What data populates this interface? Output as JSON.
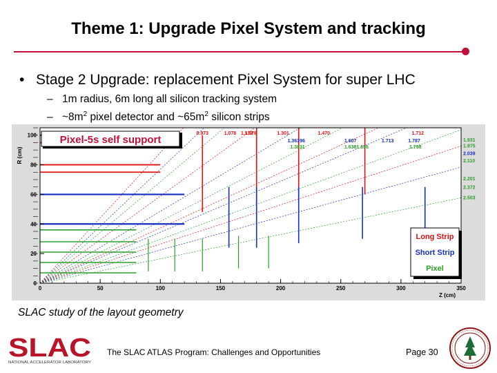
{
  "slide": {
    "title": "Theme 1: Upgrade Pixel System and tracking",
    "bullet_main": "Stage 2 Upgrade: replacement Pixel System for super LHC",
    "bullet_sub1": "1m radius, 6m long all silicon tracking system",
    "bullet_sub2_a": "~8m",
    "bullet_sub2_sup": "2",
    "bullet_sub2_b": " pixel detector and ~65m",
    "bullet_sub2_sup2": "2",
    "bullet_sub2_c": " silicon strips",
    "caption": "SLAC study of the layout geometry",
    "footer": "The SLAC ATLAS Program: Challenges and Opportunities",
    "page": "Page 30"
  },
  "logo": {
    "text": "SLAC",
    "subtext": "NATIONAL ACCELERATOR LABORATORY",
    "color": "#b8142a"
  },
  "colors": {
    "accent": "#c0103a",
    "long_strip": "#e01010",
    "short_strip": "#1530c0",
    "pixel": "#2aa02a",
    "plot_bg": "#dcdcdc"
  },
  "chart_data": {
    "type": "scatter",
    "plot_title": "Pixel-5s self support",
    "xlabel": "Z (cm)",
    "ylabel": "R (cm)",
    "xlim": [
      0,
      350
    ],
    "ylim": [
      0,
      105
    ],
    "xticks": [
      0,
      50,
      100,
      150,
      200,
      250,
      300,
      350
    ],
    "yticks": [
      0,
      20,
      40,
      60,
      80,
      100
    ],
    "legend": [
      "Long Strip",
      "Short Strip",
      "Pixel"
    ],
    "legend_position": "bottom-right",
    "top_eta_labels": [
      {
        "z": 135,
        "text": "0.973"
      },
      {
        "z": 158,
        "text": "1.078"
      },
      {
        "z": 172,
        "text": "1.172"
      },
      {
        "z": 175,
        "text": "1.078"
      },
      {
        "z": 202,
        "text": "1.301"
      },
      {
        "z": 236,
        "text": "1.470"
      },
      {
        "z": 314,
        "text": "1.712"
      }
    ],
    "top_eta_labels_row2": [
      {
        "z": 213,
        "text": "1.36396"
      },
      {
        "z": 258,
        "text": "1.607"
      },
      {
        "z": 289,
        "text": "1.713"
      },
      {
        "z": 311,
        "text": "1.787"
      }
    ],
    "top_eta_labels_row3": [
      {
        "z": 214,
        "text": "1.3831"
      },
      {
        "z": 263,
        "text": "1.6381.636"
      },
      {
        "z": 312,
        "text": "1.798"
      }
    ],
    "right_eta_labels": [
      {
        "r": 97,
        "text": "1.931"
      },
      {
        "r": 93,
        "text": "1.975"
      },
      {
        "r": 88,
        "text": "2.039"
      },
      {
        "r": 83,
        "text": "2.110"
      },
      {
        "r": 71,
        "text": "2.201"
      },
      {
        "r": 65,
        "text": "2.372"
      },
      {
        "r": 58,
        "text": "2.503"
      }
    ],
    "long_strip_barrel": [
      {
        "r": 100,
        "zmax": 100
      },
      {
        "r": 95,
        "zmax": 100
      },
      {
        "r": 80,
        "zmax": 100
      },
      {
        "r": 75,
        "zmax": 100
      }
    ],
    "long_strip_disks": [
      {
        "z": 135,
        "rmin": 48,
        "rmax": 100
      },
      {
        "z": 180,
        "rmin": 52,
        "rmax": 105
      },
      {
        "z": 215,
        "rmin": 55,
        "rmax": 105
      },
      {
        "z": 270,
        "rmin": 60,
        "rmax": 105
      }
    ],
    "short_strip_barrel": [
      {
        "r": 60,
        "zmax": 120
      },
      {
        "r": 40,
        "zmax": 120
      }
    ],
    "short_strip_disks": [
      {
        "z": 157,
        "rmin": 24,
        "rmax": 65
      },
      {
        "z": 180,
        "rmin": 24,
        "rmax": 65
      },
      {
        "z": 215,
        "rmin": 27,
        "rmax": 65
      },
      {
        "z": 268,
        "rmin": 30,
        "rmax": 65
      },
      {
        "z": 320,
        "rmin": 33,
        "rmax": 65
      }
    ],
    "pixel_barrel": [
      {
        "r": 36,
        "zmax": 80
      },
      {
        "r": 28,
        "zmax": 80
      },
      {
        "r": 21,
        "zmax": 80
      },
      {
        "r": 14,
        "zmax": 80
      },
      {
        "r": 7,
        "zmax": 80
      }
    ],
    "pixel_disks": [
      {
        "z": 90,
        "rmin": 8,
        "rmax": 30
      },
      {
        "z": 112,
        "rmin": 8,
        "rmax": 30
      },
      {
        "z": 135,
        "rmin": 8,
        "rmax": 30
      },
      {
        "z": 165,
        "rmin": 10,
        "rmax": 32
      },
      {
        "z": 190,
        "rmin": 10,
        "rmax": 32
      }
    ]
  }
}
